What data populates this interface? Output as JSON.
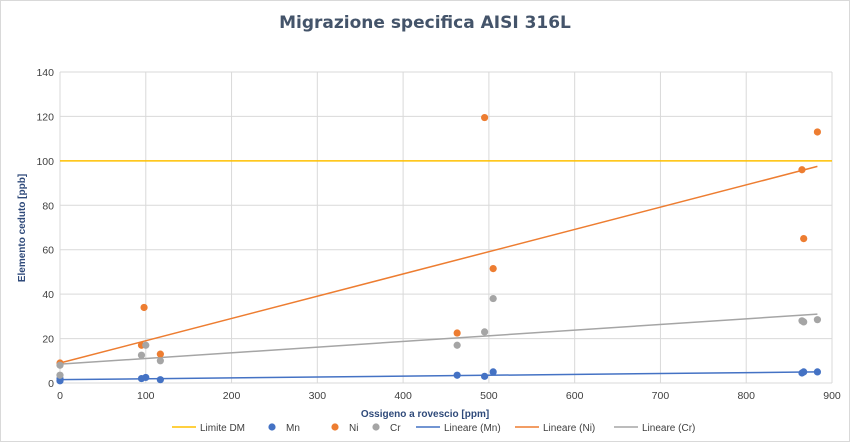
{
  "chart_data": {
    "type": "scatter",
    "title": "Migrazione specifica AISI 316L",
    "xlabel": "Ossigeno a rovescio [ppm]",
    "ylabel": "Elemento ceduto [ppb]",
    "xlim": [
      0,
      900
    ],
    "ylim": [
      0,
      140
    ],
    "xticks": [
      0,
      100,
      200,
      300,
      400,
      500,
      600,
      700,
      800,
      900
    ],
    "yticks": [
      0,
      20,
      40,
      60,
      80,
      100,
      120,
      140
    ],
    "grid": true,
    "legend_position": "bottom",
    "reference_lines": [
      {
        "name": "Limite DM",
        "y": 100,
        "color": "#ffc000"
      }
    ],
    "series": [
      {
        "name": "Mn",
        "color": "#4472c4",
        "points": [
          [
            0,
            1
          ],
          [
            0,
            2
          ],
          [
            95,
            2
          ],
          [
            100,
            2.5
          ],
          [
            117,
            1.5
          ],
          [
            463,
            3.5
          ],
          [
            495,
            3
          ],
          [
            505,
            5
          ],
          [
            865,
            4.5
          ],
          [
            867,
            5
          ],
          [
            883,
            5
          ]
        ]
      },
      {
        "name": "Ni",
        "color": "#ed7d31",
        "points": [
          [
            0,
            9
          ],
          [
            95,
            17
          ],
          [
            98,
            34
          ],
          [
            117,
            13
          ],
          [
            463,
            22.5
          ],
          [
            495,
            119.5
          ],
          [
            505,
            51.5
          ],
          [
            865,
            96
          ],
          [
            867,
            65
          ],
          [
            883,
            113
          ]
        ]
      },
      {
        "name": "Cr",
        "color": "#a5a5a5",
        "points": [
          [
            0,
            8
          ],
          [
            0,
            3.5
          ],
          [
            95,
            12.5
          ],
          [
            100,
            17
          ],
          [
            117,
            10
          ],
          [
            463,
            17
          ],
          [
            495,
            23
          ],
          [
            505,
            38
          ],
          [
            865,
            28
          ],
          [
            867,
            27.5
          ],
          [
            883,
            28.5
          ]
        ]
      }
    ],
    "trendlines": [
      {
        "name": "Lineare (Mn)",
        "color": "#4472c4",
        "from": [
          0,
          1.5
        ],
        "to": [
          883,
          5
        ]
      },
      {
        "name": "Lineare (Ni)",
        "color": "#ed7d31",
        "from": [
          0,
          9
        ],
        "to": [
          883,
          97.5
        ]
      },
      {
        "name": "Lineare (Cr)",
        "color": "#a5a5a5",
        "from": [
          0,
          8.5
        ],
        "to": [
          883,
          31
        ]
      }
    ],
    "legend": [
      {
        "label": "Limite DM",
        "kind": "line",
        "color": "#ffc000"
      },
      {
        "label": "Mn",
        "kind": "marker",
        "color": "#4472c4"
      },
      {
        "label": "Ni",
        "kind": "marker",
        "color": "#ed7d31"
      },
      {
        "label": "Cr",
        "kind": "marker",
        "color": "#a5a5a5"
      },
      {
        "label": "Lineare (Mn)",
        "kind": "line",
        "color": "#4472c4"
      },
      {
        "label": "Lineare (Ni)",
        "kind": "line",
        "color": "#ed7d31"
      },
      {
        "label": "Lineare (Cr)",
        "kind": "line",
        "color": "#a5a5a5"
      }
    ]
  }
}
